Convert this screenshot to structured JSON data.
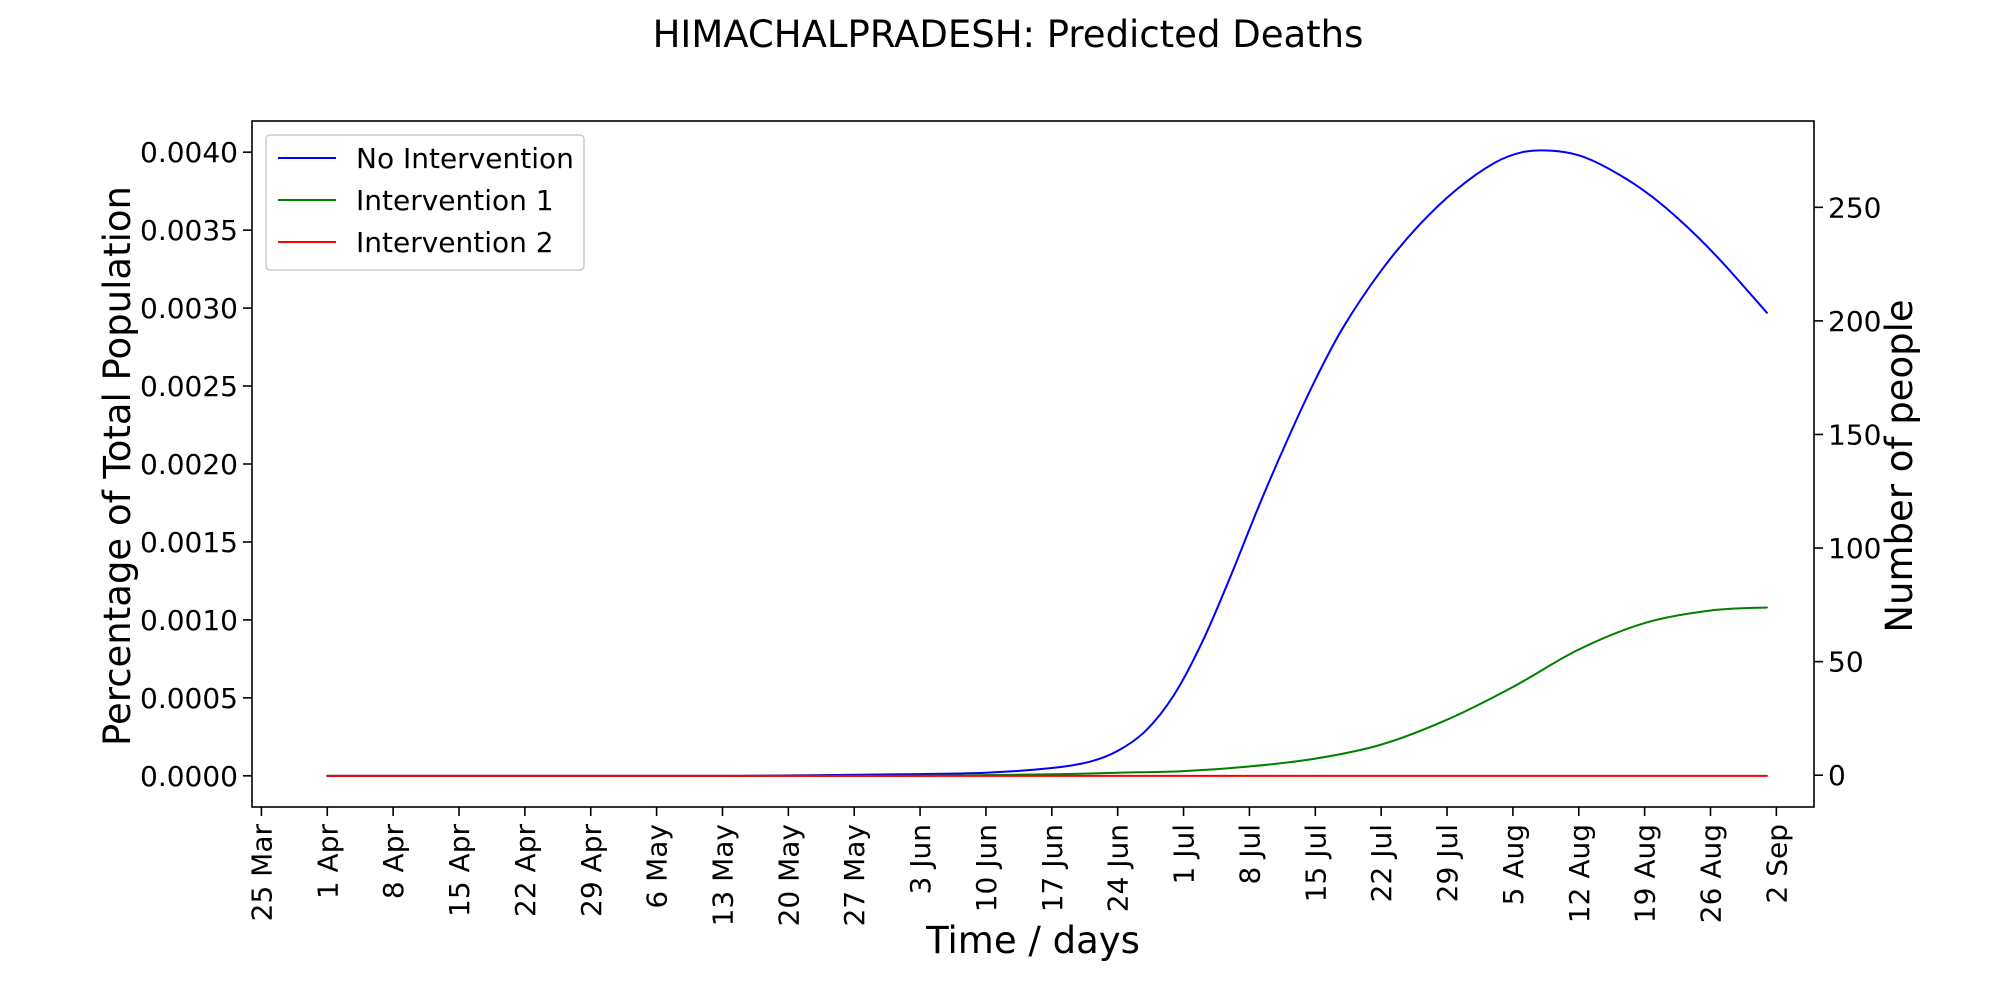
{
  "chart_data": {
    "type": "line",
    "title": "HIMACHALPRADESH: Predicted Deaths",
    "xlabel": "Time / days",
    "ylabel_left": "Percentage of Total Population",
    "ylabel_right": "Number of people",
    "x_domain": [
      "2020-03-24",
      "2020-09-06"
    ],
    "x_ticks": [
      {
        "date": "2020-03-25",
        "label": "25 Mar"
      },
      {
        "date": "2020-04-01",
        "label": "1 Apr"
      },
      {
        "date": "2020-04-08",
        "label": "8 Apr"
      },
      {
        "date": "2020-04-15",
        "label": "15 Apr"
      },
      {
        "date": "2020-04-22",
        "label": "22 Apr"
      },
      {
        "date": "2020-04-29",
        "label": "29 Apr"
      },
      {
        "date": "2020-05-06",
        "label": "6 May"
      },
      {
        "date": "2020-05-13",
        "label": "13 May"
      },
      {
        "date": "2020-05-20",
        "label": "20 May"
      },
      {
        "date": "2020-05-27",
        "label": "27 May"
      },
      {
        "date": "2020-06-03",
        "label": "3 Jun"
      },
      {
        "date": "2020-06-10",
        "label": "10 Jun"
      },
      {
        "date": "2020-06-17",
        "label": "17 Jun"
      },
      {
        "date": "2020-06-24",
        "label": "24 Jun"
      },
      {
        "date": "2020-07-01",
        "label": "1 Jul"
      },
      {
        "date": "2020-07-08",
        "label": "8 Jul"
      },
      {
        "date": "2020-07-15",
        "label": "15 Jul"
      },
      {
        "date": "2020-07-22",
        "label": "22 Jul"
      },
      {
        "date": "2020-07-29",
        "label": "29 Jul"
      },
      {
        "date": "2020-08-05",
        "label": "5 Aug"
      },
      {
        "date": "2020-08-12",
        "label": "12 Aug"
      },
      {
        "date": "2020-08-19",
        "label": "19 Aug"
      },
      {
        "date": "2020-08-26",
        "label": "26 Aug"
      },
      {
        "date": "2020-09-02",
        "label": "2 Sep"
      }
    ],
    "y_left": {
      "ylim": [
        -0.0002,
        0.0042
      ],
      "ticks": [
        0.0,
        0.0005,
        0.001,
        0.0015,
        0.002,
        0.0025,
        0.003,
        0.0035,
        0.004
      ],
      "tick_labels": [
        "0.0000",
        "0.0005",
        "0.0010",
        "0.0015",
        "0.0020",
        "0.0025",
        "0.0030",
        "0.0035",
        "0.0040"
      ]
    },
    "y_right": {
      "ylim": [
        -14,
        288
      ],
      "ticks": [
        0,
        50,
        100,
        150,
        200,
        250
      ],
      "tick_labels": [
        "0",
        "50",
        "100",
        "150",
        "200",
        "250"
      ]
    },
    "legend": {
      "position": "upper-left"
    },
    "grid": false,
    "series": [
      {
        "name": "No Intervention",
        "color": "#0000ff",
        "x": [
          "2020-04-01",
          "2020-04-15",
          "2020-05-01",
          "2020-05-15",
          "2020-06-01",
          "2020-06-10",
          "2020-06-17",
          "2020-06-21",
          "2020-06-24",
          "2020-06-27",
          "2020-06-30",
          "2020-07-03",
          "2020-07-06",
          "2020-07-09",
          "2020-07-12",
          "2020-07-15",
          "2020-07-18",
          "2020-07-22",
          "2020-07-26",
          "2020-07-30",
          "2020-08-03",
          "2020-08-06",
          "2020-08-09",
          "2020-08-12",
          "2020-08-15",
          "2020-08-19",
          "2020-08-23",
          "2020-08-27",
          "2020-09-01"
        ],
        "y": [
          0.0,
          0.0,
          0.0,
          0.0,
          1e-05,
          2e-05,
          5e-05,
          9e-05,
          0.00016,
          0.00029,
          0.00052,
          0.00086,
          0.00128,
          0.00173,
          0.00215,
          0.00254,
          0.00288,
          0.00324,
          0.00353,
          0.00376,
          0.00393,
          0.004,
          0.00401,
          0.00398,
          0.0039,
          0.00375,
          0.00355,
          0.00331,
          0.00297
        ]
      },
      {
        "name": "Intervention 1",
        "color": "#008000",
        "x": [
          "2020-04-01",
          "2020-05-01",
          "2020-06-01",
          "2020-06-17",
          "2020-06-24",
          "2020-07-01",
          "2020-07-08",
          "2020-07-15",
          "2020-07-22",
          "2020-07-29",
          "2020-08-05",
          "2020-08-12",
          "2020-08-19",
          "2020-08-26",
          "2020-09-01"
        ],
        "y": [
          0.0,
          0.0,
          0.0,
          1e-05,
          2e-05,
          3e-05,
          6e-05,
          0.00011,
          0.0002,
          0.00036,
          0.00057,
          0.00081,
          0.00098,
          0.00106,
          0.00108
        ]
      },
      {
        "name": "Intervention 2",
        "color": "#ff0000",
        "x": [
          "2020-04-01",
          "2020-05-01",
          "2020-06-01",
          "2020-07-01",
          "2020-08-01",
          "2020-09-01"
        ],
        "y": [
          0.0,
          0.0,
          0.0,
          0.0,
          0.0,
          0.0
        ]
      }
    ]
  }
}
